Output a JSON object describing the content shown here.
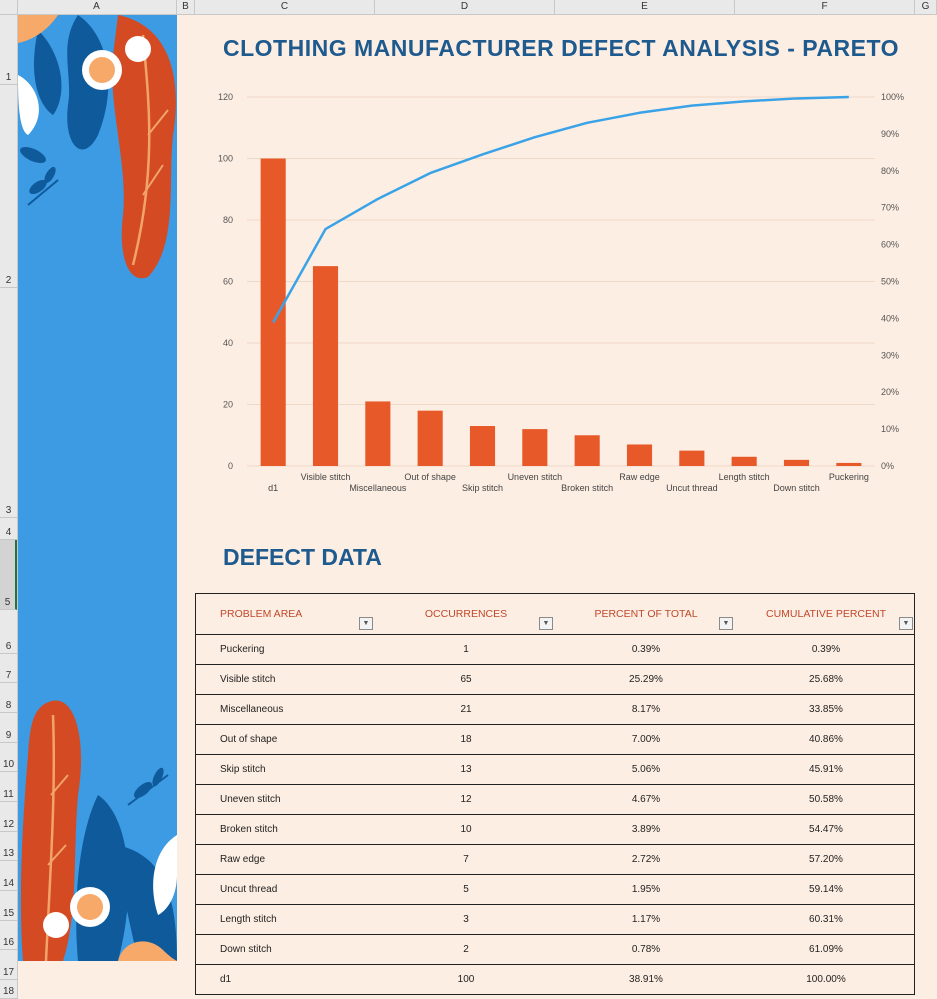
{
  "spreadsheet": {
    "columns": [
      "A",
      "B",
      "C",
      "D",
      "E",
      "F",
      "G"
    ],
    "rows": [
      "1",
      "2",
      "3",
      "4",
      "5",
      "6",
      "7",
      "8",
      "9",
      "10",
      "11",
      "12",
      "13",
      "14",
      "15",
      "16",
      "17",
      "18"
    ]
  },
  "title": "CLOTHING MANUFACTURER DEFECT ANALYSIS - PARETO",
  "section_title": "DEFECT DATA",
  "table": {
    "headers": [
      "PROBLEM AREA",
      "OCCURRENCES",
      "PERCENT OF TOTAL",
      "CUMULATIVE PERCENT"
    ],
    "rows": [
      {
        "area": "Puckering",
        "occ": "1",
        "pct": "0.39%",
        "cum": "0.39%"
      },
      {
        "area": "Visible stitch",
        "occ": "65",
        "pct": "25.29%",
        "cum": "25.68%"
      },
      {
        "area": "Miscellaneous",
        "occ": "21",
        "pct": "8.17%",
        "cum": "33.85%"
      },
      {
        "area": "Out of shape",
        "occ": "18",
        "pct": "7.00%",
        "cum": "40.86%"
      },
      {
        "area": "Skip stitch",
        "occ": "13",
        "pct": "5.06%",
        "cum": "45.91%"
      },
      {
        "area": "Uneven stitch",
        "occ": "12",
        "pct": "4.67%",
        "cum": "50.58%"
      },
      {
        "area": "Broken stitch",
        "occ": "10",
        "pct": "3.89%",
        "cum": "54.47%"
      },
      {
        "area": "Raw edge",
        "occ": "7",
        "pct": "2.72%",
        "cum": "57.20%"
      },
      {
        "area": "Uncut thread",
        "occ": "5",
        "pct": "1.95%",
        "cum": "59.14%"
      },
      {
        "area": "Length stitch",
        "occ": "3",
        "pct": "1.17%",
        "cum": "60.31%"
      },
      {
        "area": "Down stitch",
        "occ": "2",
        "pct": "0.78%",
        "cum": "61.09%"
      },
      {
        "area": "d1",
        "occ": "100",
        "pct": "38.91%",
        "cum": "100.00%"
      }
    ]
  },
  "colors": {
    "bar": "#e8592a",
    "line": "#3aa3e8",
    "title": "#1e5a8e",
    "header_text": "#c0482b",
    "background": "#fdeee3",
    "deco_blue": "#3d9be3"
  },
  "chart_data": {
    "type": "bar",
    "categories": [
      "d1",
      "Visible stitch",
      "Miscellaneous",
      "Out of shape",
      "Skip stitch",
      "Uneven stitch",
      "Broken stitch",
      "Raw edge",
      "Uncut thread",
      "Length stitch",
      "Down stitch",
      "Puckering"
    ],
    "series": [
      {
        "type": "bar",
        "values": [
          100,
          65,
          21,
          18,
          13,
          12,
          10,
          7,
          5,
          3,
          2,
          1
        ]
      },
      {
        "type": "line",
        "axis": "secondary",
        "values": [
          38.91,
          64.2,
          72.37,
          79.38,
          84.44,
          89.11,
          93.0,
          95.72,
          97.67,
          98.83,
          99.61,
          100
        ]
      }
    ],
    "ylim": [
      0,
      120
    ],
    "yticks": [
      "0",
      "20",
      "40",
      "60",
      "80",
      "100",
      "120"
    ],
    "y2lim": [
      0,
      100
    ],
    "y2ticks": [
      "0%",
      "10%",
      "20%",
      "30%",
      "40%",
      "50%",
      "60%",
      "70%",
      "80%",
      "90%",
      "100%"
    ],
    "grid": true,
    "legend": "none"
  }
}
